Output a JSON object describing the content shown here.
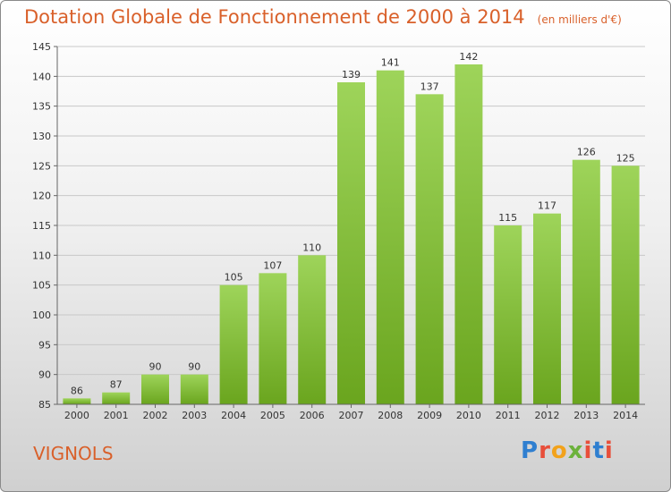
{
  "header": {
    "title": "Dotation Globale de Fonctionnement de 2000 à 2014",
    "unit": "(en milliers d'€)"
  },
  "footer": {
    "commune": "VIGNOLS",
    "logo_text": "Proxiti"
  },
  "colors": {
    "title": "#d9602a",
    "bar_light": "#9ed45a",
    "bar_dark": "#6aa51e"
  },
  "chart_data": {
    "type": "bar",
    "title": "Dotation Globale de Fonctionnement de 2000 à 2014",
    "subtitle": "(en milliers d'€)",
    "xlabel": "",
    "ylabel": "",
    "categories": [
      "2000",
      "2001",
      "2002",
      "2003",
      "2004",
      "2005",
      "2006",
      "2007",
      "2008",
      "2009",
      "2010",
      "2011",
      "2012",
      "2013",
      "2014"
    ],
    "values": [
      86,
      87,
      90,
      90,
      105,
      107,
      110,
      139,
      141,
      137,
      142,
      115,
      117,
      126,
      125
    ],
    "ylim": [
      85,
      145
    ],
    "yticks": [
      85,
      90,
      95,
      100,
      105,
      110,
      115,
      120,
      125,
      130,
      135,
      140,
      145
    ],
    "grid": true,
    "legend": "none"
  }
}
